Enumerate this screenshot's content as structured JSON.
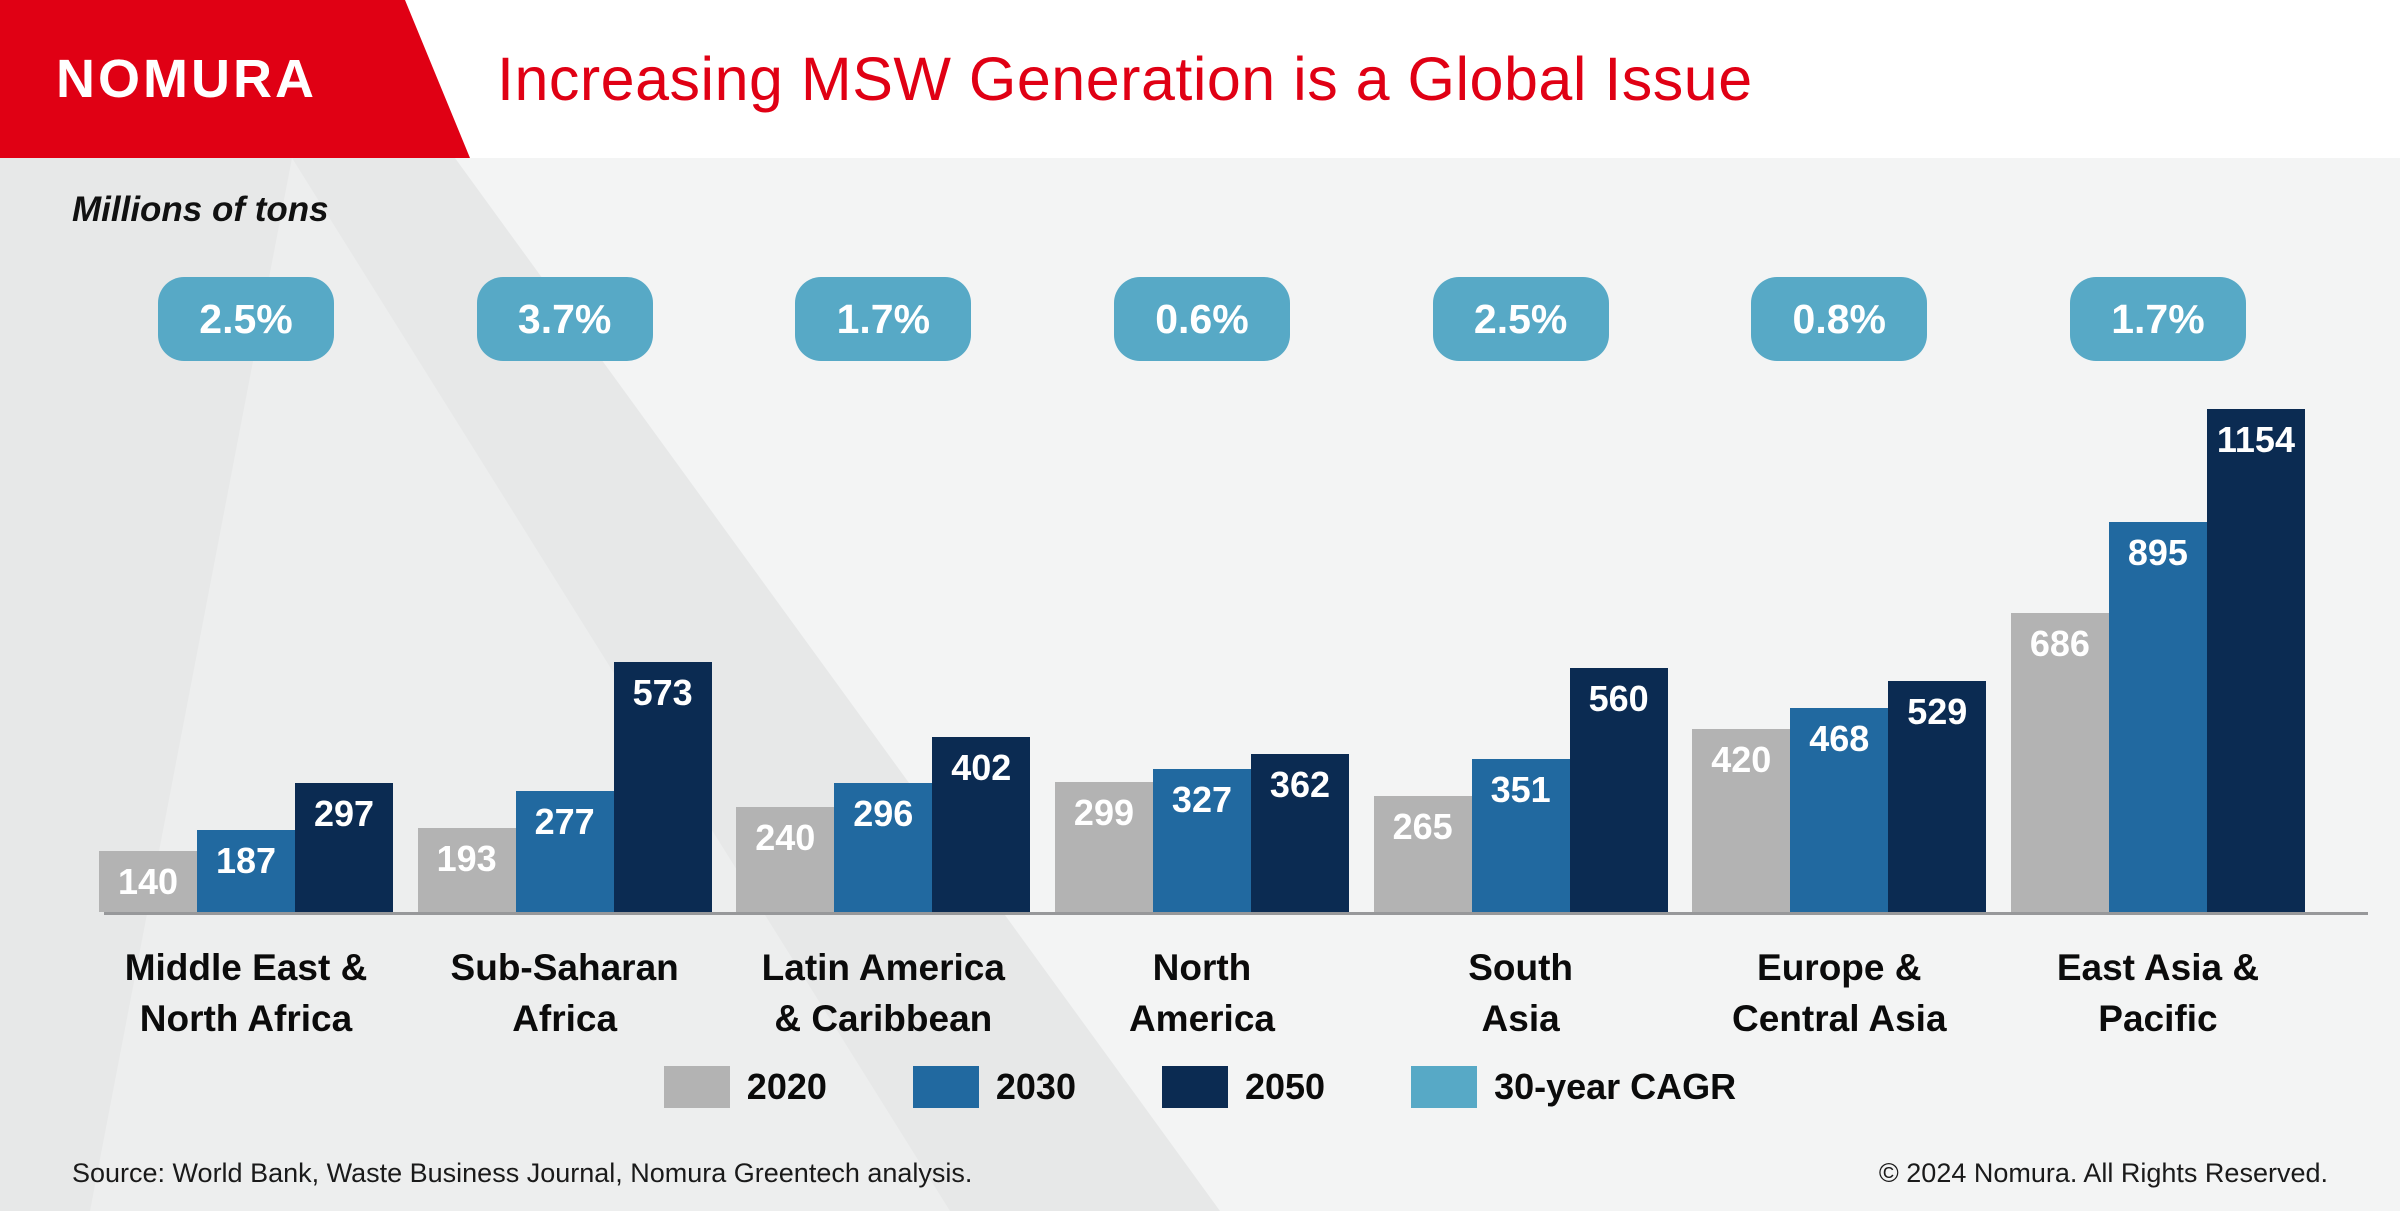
{
  "header": {
    "logo_text": "NOMURA",
    "title": "Increasing MSW Generation is a Global Issue"
  },
  "units_label": "Millions of tons",
  "chart_data": {
    "type": "bar",
    "title": "Increasing MSW Generation is a Global Issue",
    "ylabel": "Millions of tons",
    "categories": [
      "Middle East & North Africa",
      "Sub-Saharan Africa",
      "Latin America & Caribbean",
      "North America",
      "South Asia",
      "Europe & Central Asia",
      "East Asia & Pacific"
    ],
    "category_label_lines": [
      [
        "Middle East &",
        "North Africa"
      ],
      [
        "Sub-Saharan",
        "Africa"
      ],
      [
        "Latin America",
        "& Caribbean"
      ],
      [
        "North",
        "America"
      ],
      [
        "South",
        "Asia"
      ],
      [
        "Europe &",
        "Central Asia"
      ],
      [
        "East Asia &",
        "Pacific"
      ]
    ],
    "series": [
      {
        "name": "2020",
        "color": "#B3B3B3",
        "values": [
          140,
          193,
          240,
          299,
          265,
          420,
          686
        ]
      },
      {
        "name": "2030",
        "color": "#2169A0",
        "values": [
          187,
          277,
          296,
          327,
          351,
          468,
          895
        ]
      },
      {
        "name": "2050",
        "color": "#0B2B52",
        "values": [
          297,
          573,
          402,
          362,
          560,
          529,
          1154
        ]
      }
    ],
    "cagr_badges": {
      "name": "30-year CAGR",
      "color": "#57A9C6",
      "values": [
        "2.5%",
        "3.7%",
        "1.7%",
        "0.6%",
        "2.5%",
        "0.8%",
        "1.7%"
      ]
    },
    "ylim": [
      0,
      1200
    ],
    "grid": false,
    "legend_position": "bottom",
    "value_labels": "inside-top-white"
  },
  "legend": [
    {
      "label": "2020",
      "color": "#B3B3B3"
    },
    {
      "label": "2030",
      "color": "#2169A0"
    },
    {
      "label": "2050",
      "color": "#0B2B52"
    },
    {
      "label": "30-year CAGR",
      "color": "#57A9C6"
    }
  ],
  "footer": {
    "source": "Source: World Bank, Waste Business Journal, Nomura Greentech analysis.",
    "copyright": "© 2024 Nomura. All Rights Reserved."
  },
  "colors": {
    "brand_red": "#E00014",
    "bar_2020": "#B3B3B3",
    "bar_2030": "#2169A0",
    "bar_2050": "#0B2B52",
    "cagr_teal": "#57A9C6",
    "background": "#E7E8E8",
    "background_light": "#F3F4F4",
    "axis_line": "#97989A"
  }
}
